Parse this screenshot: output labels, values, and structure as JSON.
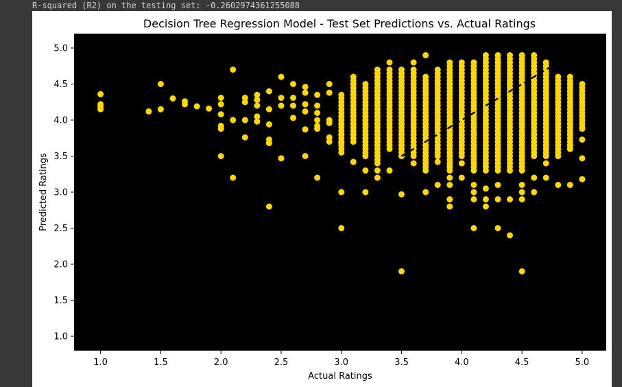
{
  "console": {
    "output_text": "R-squared (R2) on the testing set: -0.2602974361255088"
  },
  "colors": {
    "background": "#000000",
    "points": "#FFD700",
    "line": "#000000"
  },
  "chart_data": {
    "type": "scatter",
    "title": "Decision Tree Regression Model - Test Set Predictions vs. Actual Ratings",
    "xlabel": "Actual Ratings",
    "ylabel": "Predicted Ratings",
    "xlim": [
      0.78,
      5.2
    ],
    "ylim": [
      0.8,
      5.2
    ],
    "xticks": [
      1.0,
      1.5,
      2.0,
      2.5,
      3.0,
      3.5,
      4.0,
      4.5,
      5.0
    ],
    "xtick_labels": [
      "1.0",
      "1.5",
      "2.0",
      "2.5",
      "3.0",
      "3.5",
      "4.0",
      "4.5",
      "5.0"
    ],
    "yticks": [
      1.0,
      1.5,
      2.0,
      2.5,
      3.0,
      3.5,
      4.0,
      4.5,
      5.0
    ],
    "ytick_labels": [
      "1.0",
      "1.5",
      "2.0",
      "2.5",
      "3.0",
      "3.5",
      "4.0",
      "4.5",
      "5.0"
    ],
    "grid": false,
    "reference_line": {
      "style": "dashed",
      "x": [
        3.5,
        4.8
      ],
      "y": [
        3.5,
        4.8
      ]
    },
    "sparse_points": [
      [
        1.0,
        4.36
      ],
      [
        1.0,
        4.22
      ],
      [
        1.0,
        4.19
      ],
      [
        1.0,
        4.15
      ],
      [
        1.4,
        4.12
      ],
      [
        1.5,
        4.5
      ],
      [
        1.5,
        4.15
      ],
      [
        1.6,
        4.3
      ],
      [
        1.7,
        4.26
      ],
      [
        1.7,
        4.22
      ],
      [
        1.8,
        4.19
      ],
      [
        1.9,
        4.16
      ],
      [
        2.0,
        4.31
      ],
      [
        2.0,
        4.22
      ],
      [
        2.0,
        4.08
      ],
      [
        2.0,
        3.92
      ],
      [
        2.0,
        3.88
      ],
      [
        2.0,
        3.5
      ],
      [
        2.1,
        4.7
      ],
      [
        2.1,
        4.0
      ],
      [
        2.1,
        3.2
      ],
      [
        2.2,
        4.31
      ],
      [
        2.2,
        4.25
      ],
      [
        2.2,
        4.0
      ],
      [
        2.2,
        3.76
      ],
      [
        2.3,
        4.35
      ],
      [
        2.3,
        4.28
      ],
      [
        2.3,
        4.2
      ],
      [
        2.3,
        4.05
      ],
      [
        2.3,
        3.98
      ],
      [
        2.4,
        4.4
      ],
      [
        2.4,
        4.15
      ],
      [
        2.4,
        3.94
      ],
      [
        2.4,
        3.73
      ],
      [
        2.4,
        3.68
      ],
      [
        2.4,
        2.8
      ],
      [
        2.5,
        4.6
      ],
      [
        2.5,
        4.31
      ],
      [
        2.5,
        4.2
      ],
      [
        2.5,
        3.47
      ],
      [
        2.6,
        4.5
      ],
      [
        2.6,
        4.31
      ],
      [
        2.6,
        4.2
      ],
      [
        2.6,
        4.03
      ],
      [
        2.7,
        4.46
      ],
      [
        2.7,
        4.38
      ],
      [
        2.7,
        4.22
      ],
      [
        2.7,
        4.12
      ],
      [
        2.7,
        3.87
      ],
      [
        2.7,
        3.5
      ],
      [
        2.8,
        4.35
      ],
      [
        2.8,
        4.2
      ],
      [
        2.8,
        4.1
      ],
      [
        2.8,
        4.0
      ],
      [
        2.8,
        3.92
      ],
      [
        2.8,
        3.88
      ],
      [
        2.8,
        3.2
      ],
      [
        2.9,
        4.5
      ],
      [
        2.9,
        4.38
      ],
      [
        2.9,
        4.0
      ],
      [
        2.9,
        3.96
      ],
      [
        2.9,
        3.76
      ],
      [
        2.9,
        3.7
      ],
      [
        3.0,
        3.0
      ],
      [
        3.0,
        2.5
      ],
      [
        3.0,
        3.55
      ],
      [
        3.0,
        3.68
      ],
      [
        3.0,
        3.8
      ],
      [
        3.1,
        3.42
      ],
      [
        3.2,
        3.3
      ],
      [
        3.2,
        3.0
      ],
      [
        3.3,
        3.3
      ],
      [
        3.3,
        3.2
      ],
      [
        3.3,
        3.7
      ],
      [
        3.4,
        3.3
      ],
      [
        3.4,
        4.8
      ],
      [
        3.5,
        2.97
      ],
      [
        3.5,
        1.9
      ],
      [
        3.6,
        3.4
      ],
      [
        3.6,
        4.8
      ],
      [
        3.7,
        3.0
      ],
      [
        3.7,
        4.9
      ],
      [
        3.8,
        3.1
      ],
      [
        3.8,
        3.42
      ],
      [
        3.9,
        2.9
      ],
      [
        3.9,
        2.8
      ],
      [
        3.9,
        3.1
      ],
      [
        3.9,
        3.2
      ],
      [
        4.0,
        3.2
      ],
      [
        4.0,
        3.4
      ],
      [
        4.1,
        2.9
      ],
      [
        4.1,
        3.0
      ],
      [
        4.1,
        3.1
      ],
      [
        4.1,
        2.5
      ],
      [
        4.2,
        2.8
      ],
      [
        4.2,
        2.9
      ],
      [
        4.2,
        3.05
      ],
      [
        4.3,
        2.5
      ],
      [
        4.3,
        2.9
      ],
      [
        4.3,
        3.1
      ],
      [
        4.4,
        2.4
      ],
      [
        4.4,
        2.9
      ],
      [
        4.5,
        2.9
      ],
      [
        4.5,
        3.0
      ],
      [
        4.5,
        3.1
      ],
      [
        4.5,
        1.9
      ],
      [
        4.6,
        3.0
      ],
      [
        4.6,
        3.2
      ],
      [
        4.7,
        3.2
      ],
      [
        4.7,
        3.4
      ],
      [
        4.8,
        3.1
      ],
      [
        4.9,
        3.1
      ],
      [
        4.9,
        3.6
      ],
      [
        4.9,
        3.65
      ],
      [
        5.0,
        3.18
      ],
      [
        5.0,
        3.47
      ],
      [
        5.0,
        3.73
      ],
      [
        5.0,
        3.88
      ]
    ],
    "dense_columns": [
      {
        "x": 3.0,
        "y_min": 3.6,
        "y_max": 4.35
      },
      {
        "x": 3.1,
        "y_min": 3.7,
        "y_max": 4.6
      },
      {
        "x": 3.2,
        "y_min": 3.5,
        "y_max": 4.5
      },
      {
        "x": 3.3,
        "y_min": 3.4,
        "y_max": 4.7
      },
      {
        "x": 3.4,
        "y_min": 3.6,
        "y_max": 4.7
      },
      {
        "x": 3.5,
        "y_min": 3.5,
        "y_max": 4.7
      },
      {
        "x": 3.6,
        "y_min": 3.5,
        "y_max": 4.7
      },
      {
        "x": 3.7,
        "y_min": 3.3,
        "y_max": 4.6
      },
      {
        "x": 3.8,
        "y_min": 3.5,
        "y_max": 4.7
      },
      {
        "x": 3.9,
        "y_min": 3.3,
        "y_max": 4.8
      },
      {
        "x": 4.0,
        "y_min": 3.5,
        "y_max": 4.8
      },
      {
        "x": 4.1,
        "y_min": 3.3,
        "y_max": 4.8
      },
      {
        "x": 4.2,
        "y_min": 3.3,
        "y_max": 4.9
      },
      {
        "x": 4.3,
        "y_min": 3.3,
        "y_max": 4.9
      },
      {
        "x": 4.4,
        "y_min": 3.3,
        "y_max": 4.9
      },
      {
        "x": 4.5,
        "y_min": 3.3,
        "y_max": 4.9
      },
      {
        "x": 4.6,
        "y_min": 3.5,
        "y_max": 4.9
      },
      {
        "x": 4.7,
        "y_min": 3.5,
        "y_max": 4.8
      },
      {
        "x": 4.8,
        "y_min": 3.5,
        "y_max": 4.6
      },
      {
        "x": 4.9,
        "y_min": 3.6,
        "y_max": 4.6
      },
      {
        "x": 5.0,
        "y_min": 3.9,
        "y_max": 4.5
      }
    ],
    "dense_step": 0.05
  }
}
